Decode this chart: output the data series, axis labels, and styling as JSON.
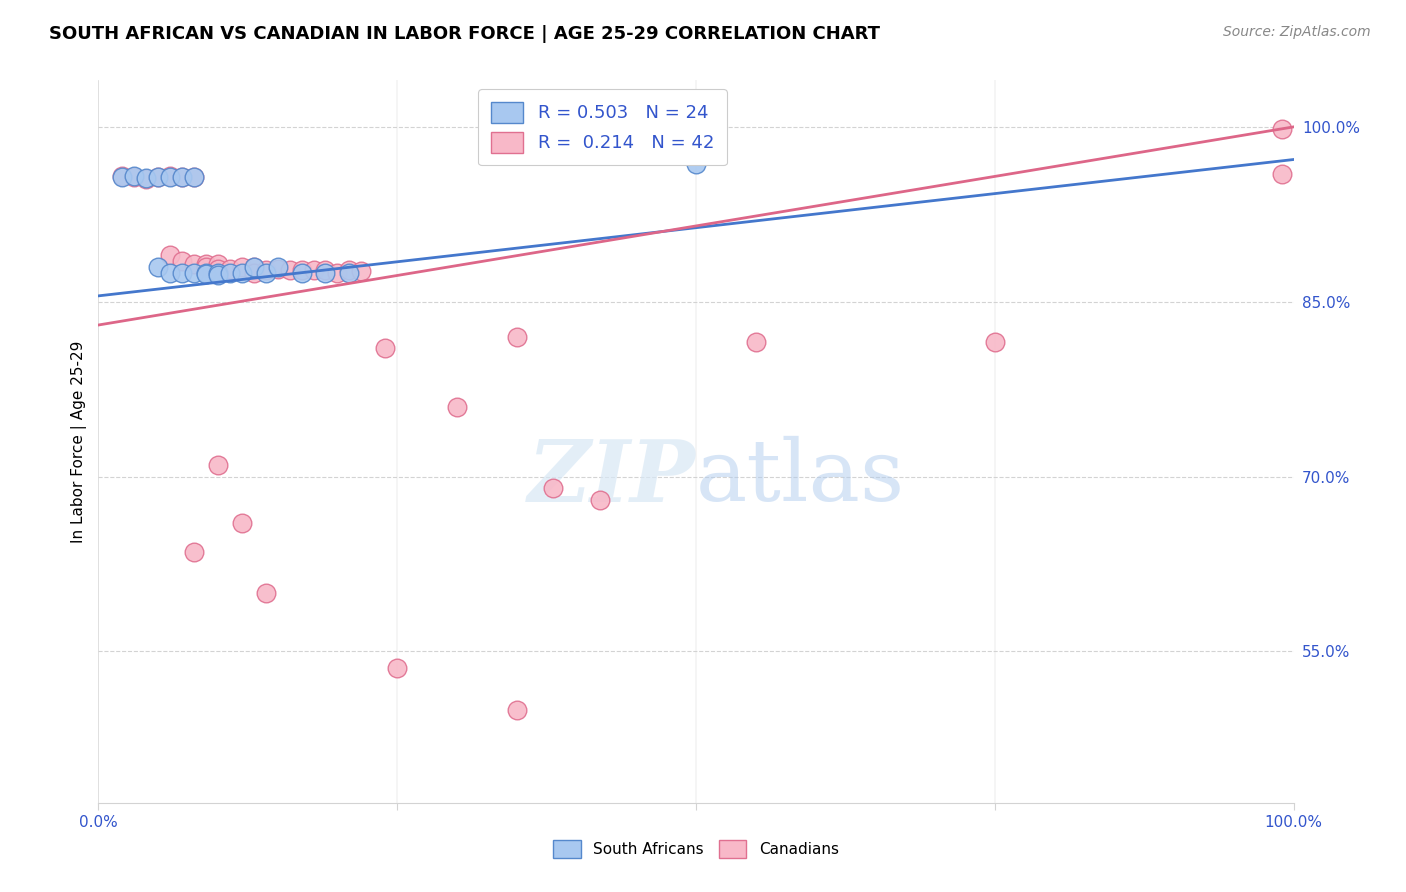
{
  "title": "SOUTH AFRICAN VS CANADIAN IN LABOR FORCE | AGE 25-29 CORRELATION CHART",
  "source": "Source: ZipAtlas.com",
  "ylabel": "In Labor Force | Age 25-29",
  "xlim": [
    0.0,
    1.0
  ],
  "ylim": [
    0.42,
    1.04
  ],
  "ytick_positions": [
    0.55,
    0.7,
    0.85,
    1.0
  ],
  "r_blue": 0.503,
  "n_blue": 24,
  "r_pink": 0.214,
  "n_pink": 42,
  "blue_fill": "#a8c8f0",
  "blue_edge": "#5588cc",
  "pink_fill": "#f8b8c8",
  "pink_edge": "#e07090",
  "blue_line": "#4477cc",
  "pink_line": "#dd6688",
  "legend_text_color": "#3355cc",
  "background_color": "#ffffff",
  "title_fontsize": 13,
  "axis_fontsize": 11,
  "tick_fontsize": 11,
  "source_fontsize": 10,
  "blue_points_x": [
    0.02,
    0.03,
    0.04,
    0.05,
    0.05,
    0.06,
    0.06,
    0.07,
    0.07,
    0.08,
    0.08,
    0.09,
    0.09,
    0.1,
    0.1,
    0.11,
    0.12,
    0.13,
    0.14,
    0.15,
    0.17,
    0.19,
    0.21,
    0.5
  ],
  "blue_points_y": [
    0.957,
    0.958,
    0.956,
    0.957,
    0.88,
    0.957,
    0.875,
    0.957,
    0.875,
    0.957,
    0.875,
    0.875,
    0.874,
    0.875,
    0.873,
    0.875,
    0.875,
    0.88,
    0.875,
    0.88,
    0.875,
    0.875,
    0.875,
    0.968
  ],
  "pink_points_x": [
    0.02,
    0.03,
    0.04,
    0.05,
    0.06,
    0.06,
    0.07,
    0.07,
    0.08,
    0.08,
    0.09,
    0.09,
    0.1,
    0.1,
    0.11,
    0.12,
    0.13,
    0.13,
    0.14,
    0.15,
    0.16,
    0.17,
    0.18,
    0.19,
    0.2,
    0.21,
    0.22,
    0.24,
    0.3,
    0.35,
    0.38,
    0.42,
    0.55,
    0.75,
    0.08,
    0.1,
    0.12,
    0.14,
    0.25,
    0.35,
    0.99,
    0.99
  ],
  "pink_points_y": [
    0.958,
    0.957,
    0.955,
    0.957,
    0.958,
    0.89,
    0.957,
    0.885,
    0.957,
    0.882,
    0.882,
    0.88,
    0.882,
    0.878,
    0.878,
    0.88,
    0.88,
    0.875,
    0.877,
    0.878,
    0.877,
    0.877,
    0.877,
    0.877,
    0.875,
    0.877,
    0.876,
    0.81,
    0.76,
    0.82,
    0.69,
    0.68,
    0.815,
    0.815,
    0.635,
    0.71,
    0.66,
    0.6,
    0.536,
    0.5,
    0.998,
    0.96
  ],
  "blue_line_x0": 0.0,
  "blue_line_y0": 0.855,
  "blue_line_x1": 1.0,
  "blue_line_y1": 0.972,
  "pink_line_x0": 0.0,
  "pink_line_y0": 0.83,
  "pink_line_x1": 1.0,
  "pink_line_y1": 1.0
}
